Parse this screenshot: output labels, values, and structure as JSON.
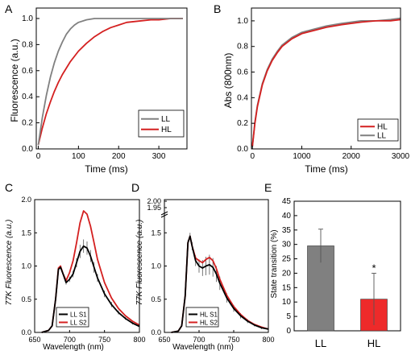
{
  "chart_data": [
    {
      "panel": "A",
      "type": "line",
      "xlabel": "Time (ms)",
      "ylabel": "Fluorescence (a.u.)",
      "xlim": [
        -5,
        370
      ],
      "ylim": [
        0,
        1.08
      ],
      "xticks": [
        0,
        100,
        200,
        300
      ],
      "yticks": [
        0.0,
        0.2,
        0.4,
        0.6,
        0.8,
        1.0
      ],
      "legend_position": "bottom-right",
      "series": [
        {
          "name": "LL",
          "color": "#808080",
          "x": [
            0,
            10,
            20,
            30,
            40,
            50,
            60,
            70,
            80,
            90,
            100,
            120,
            140,
            160,
            200,
            250,
            300,
            360
          ],
          "y": [
            0.03,
            0.24,
            0.41,
            0.55,
            0.66,
            0.75,
            0.82,
            0.88,
            0.92,
            0.95,
            0.97,
            0.99,
            1.0,
            1.0,
            1.0,
            1.0,
            1.0,
            1.0
          ]
        },
        {
          "name": "HL",
          "color": "#d42020",
          "x": [
            0,
            10,
            20,
            30,
            40,
            50,
            60,
            80,
            100,
            120,
            140,
            160,
            180,
            200,
            220,
            250,
            280,
            300,
            330,
            360
          ],
          "y": [
            0.03,
            0.16,
            0.27,
            0.36,
            0.44,
            0.51,
            0.57,
            0.67,
            0.75,
            0.81,
            0.86,
            0.9,
            0.93,
            0.95,
            0.97,
            0.98,
            0.99,
            0.99,
            1.0,
            1.0
          ]
        }
      ]
    },
    {
      "panel": "B",
      "type": "line",
      "xlabel": "Time (ms)",
      "ylabel": "Abs (800nm)",
      "xlim": [
        -20,
        3000
      ],
      "ylim": [
        0,
        1.1
      ],
      "xticks": [
        0,
        1000,
        2000,
        3000
      ],
      "yticks": [
        0.0,
        0.2,
        0.4,
        0.6,
        0.8,
        1.0
      ],
      "legend_position": "bottom-right",
      "series": [
        {
          "name": "HL",
          "color": "#d42020",
          "x": [
            0,
            50,
            100,
            200,
            300,
            400,
            500,
            600,
            800,
            1000,
            1200,
            1500,
            1800,
            2000,
            2200,
            2500,
            2800,
            3000
          ],
          "y": [
            0.02,
            0.2,
            0.33,
            0.5,
            0.61,
            0.69,
            0.75,
            0.8,
            0.86,
            0.9,
            0.92,
            0.95,
            0.97,
            0.98,
            0.99,
            1.0,
            1.0,
            1.01
          ]
        },
        {
          "name": "LL",
          "color": "#808080",
          "x": [
            0,
            50,
            100,
            200,
            300,
            400,
            500,
            600,
            800,
            1000,
            1200,
            1500,
            1800,
            2000,
            2200,
            2500,
            2800,
            3000
          ],
          "y": [
            0.02,
            0.21,
            0.34,
            0.51,
            0.62,
            0.7,
            0.76,
            0.81,
            0.87,
            0.91,
            0.93,
            0.96,
            0.98,
            0.99,
            1.0,
            1.0,
            1.01,
            1.02
          ]
        }
      ]
    },
    {
      "panel": "C",
      "type": "line",
      "xlabel": "Wavelength (nm)",
      "ylabel": "77K Fluorescence (a.u.)",
      "xlim": [
        650,
        800
      ],
      "ylim": [
        0,
        2.0
      ],
      "xticks": [
        650,
        700,
        750,
        800
      ],
      "yticks": [
        0.0,
        0.5,
        1.0,
        1.5,
        2.0
      ],
      "legend_position": "bottom-right",
      "series": [
        {
          "name": "LL S1",
          "color": "#000000",
          "x": [
            660,
            670,
            675,
            680,
            684,
            687,
            690,
            695,
            700,
            705,
            710,
            715,
            720,
            725,
            730,
            735,
            740,
            750,
            760,
            770,
            780,
            790,
            800
          ],
          "y": [
            0.0,
            0.03,
            0.1,
            0.5,
            0.95,
            0.98,
            0.9,
            0.75,
            0.8,
            0.88,
            1.05,
            1.22,
            1.3,
            1.27,
            1.15,
            0.98,
            0.82,
            0.58,
            0.42,
            0.3,
            0.21,
            0.14,
            0.09
          ],
          "error": [
            0,
            0,
            0,
            0.01,
            0.02,
            0.02,
            0.02,
            0.03,
            0.04,
            0.05,
            0.07,
            0.1,
            0.1,
            0.1,
            0.09,
            0.08,
            0.06,
            0.05,
            0.04,
            0.03,
            0.02,
            0.02,
            0.01
          ]
        },
        {
          "name": "LL S2",
          "color": "#d42020",
          "x": [
            660,
            670,
            675,
            680,
            684,
            687,
            690,
            695,
            700,
            705,
            710,
            715,
            720,
            725,
            730,
            735,
            740,
            750,
            760,
            770,
            780,
            790,
            800
          ],
          "y": [
            0.0,
            0.03,
            0.1,
            0.5,
            0.97,
            1.0,
            0.9,
            0.78,
            0.9,
            1.08,
            1.35,
            1.65,
            1.83,
            1.78,
            1.6,
            1.35,
            1.1,
            0.75,
            0.52,
            0.36,
            0.25,
            0.17,
            0.11
          ]
        }
      ]
    },
    {
      "panel": "D",
      "type": "line",
      "xlabel": "Wavelength (nm)",
      "ylabel": "77K Fluorescence (a.u.)",
      "xlim": [
        650,
        800
      ],
      "ylim": [
        0,
        2.0
      ],
      "xticks": [
        650,
        700,
        750,
        800
      ],
      "yticks": [
        0.0,
        0.5,
        1.0,
        1.5
      ],
      "ytick_break_labels": [
        "1.95",
        "2.00"
      ],
      "legend_position": "bottom-right",
      "series": [
        {
          "name": "HL S1",
          "color": "#000000",
          "x": [
            660,
            670,
            675,
            680,
            684,
            687,
            690,
            695,
            700,
            705,
            710,
            715,
            720,
            725,
            730,
            740,
            750,
            760,
            770,
            780,
            790,
            800
          ],
          "y": [
            0.0,
            0.02,
            0.1,
            0.55,
            1.35,
            1.45,
            1.3,
            1.08,
            1.0,
            0.97,
            1.0,
            1.02,
            0.98,
            0.88,
            0.74,
            0.52,
            0.36,
            0.25,
            0.17,
            0.11,
            0.07,
            0.05
          ],
          "error": [
            0,
            0,
            0,
            0.02,
            0.04,
            0.05,
            0.06,
            0.08,
            0.1,
            0.12,
            0.14,
            0.15,
            0.14,
            0.12,
            0.1,
            0.07,
            0.05,
            0.04,
            0.03,
            0.02,
            0.02,
            0.01
          ]
        },
        {
          "name": "HL S2",
          "color": "#d42020",
          "x": [
            660,
            670,
            675,
            680,
            684,
            687,
            690,
            695,
            700,
            705,
            710,
            715,
            720,
            725,
            730,
            740,
            750,
            760,
            770,
            780,
            790,
            800
          ],
          "y": [
            0.0,
            0.02,
            0.1,
            0.55,
            1.35,
            1.45,
            1.3,
            1.12,
            1.08,
            1.05,
            1.1,
            1.13,
            1.08,
            0.96,
            0.8,
            0.56,
            0.39,
            0.27,
            0.18,
            0.12,
            0.08,
            0.05
          ]
        }
      ]
    },
    {
      "panel": "E",
      "type": "bar",
      "ylabel": "State transition (%)",
      "ylim": [
        0,
        45
      ],
      "yticks": [
        0,
        5,
        10,
        15,
        20,
        25,
        30,
        35,
        40,
        45
      ],
      "categories": [
        "LL",
        "HL"
      ],
      "values": [
        29.5,
        11
      ],
      "errors": [
        5.8,
        9
      ],
      "colors": [
        "#808080",
        "#ee2a2a"
      ],
      "annotation": "*"
    }
  ]
}
